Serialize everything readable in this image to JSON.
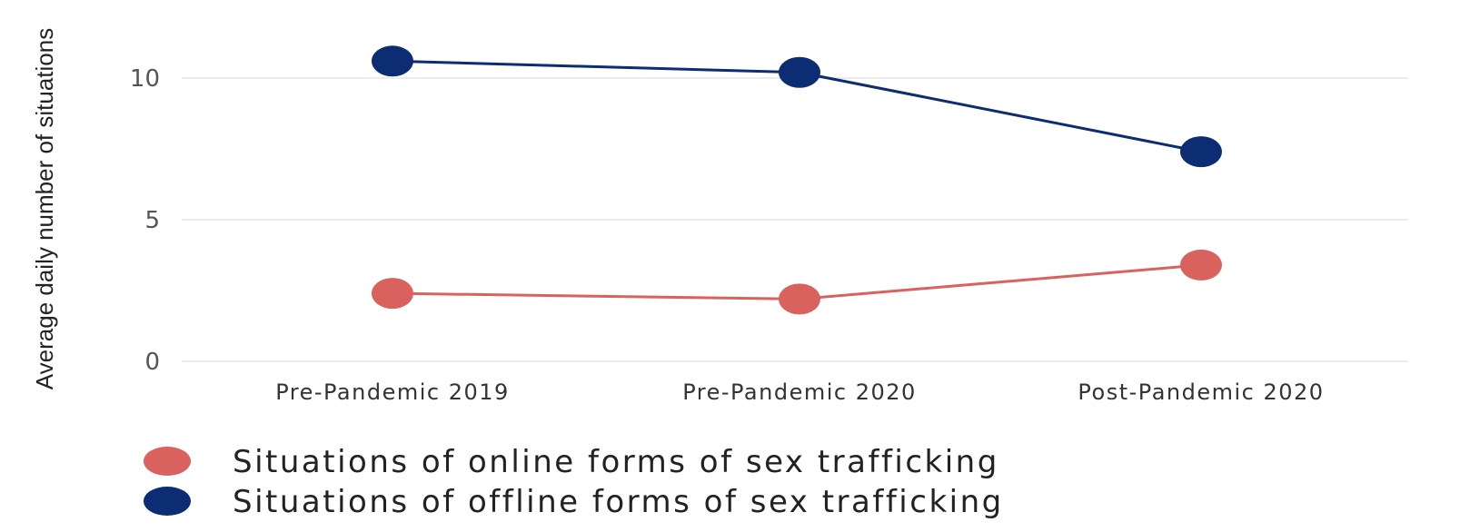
{
  "chart_data": {
    "type": "line",
    "categories": [
      "Pre-Pandemic 2019",
      "Pre-Pandemic 2020",
      "Post-Pandemic 2020"
    ],
    "series": [
      {
        "name": "Situations of online forms of sex trafficking",
        "color": "#d9625e",
        "values": [
          2.4,
          2.2,
          3.4
        ]
      },
      {
        "name": "Situations of offline forms of sex trafficking",
        "color": "#0c2d73",
        "values": [
          10.6,
          10.2,
          7.4
        ]
      }
    ],
    "ylabel": "Average daily number of situations",
    "xlabel": "",
    "yticks": [
      0,
      5,
      10
    ],
    "ylim": [
      0,
      10
    ],
    "grid": true,
    "legend_position": "bottom-left"
  }
}
